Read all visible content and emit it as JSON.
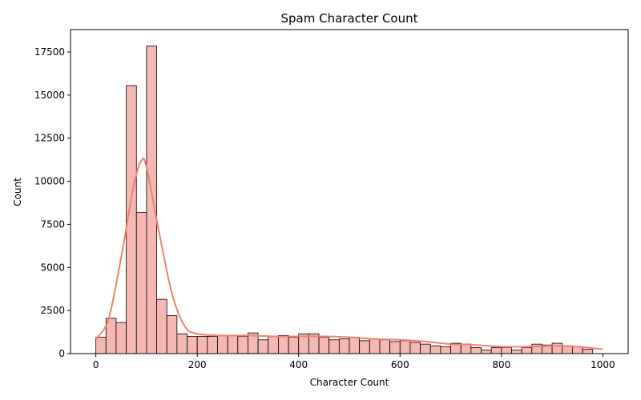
{
  "chart_data": {
    "type": "bar",
    "subtype": "histogram-with-kde",
    "title": "Spam Character Count",
    "xlabel": "Character Count",
    "ylabel": "Count",
    "xlim": [
      -50,
      1050
    ],
    "ylim": [
      0,
      18800
    ],
    "xticks": [
      0,
      200,
      400,
      600,
      800,
      1000
    ],
    "yticks": [
      0,
      2500,
      5000,
      7500,
      10000,
      12500,
      15000,
      17500
    ],
    "grid": false,
    "legend": "none",
    "bin_width": 20,
    "bin_start": 0,
    "bar_color": "#f5b8b2",
    "bar_edge_color": "#000000",
    "kde_color": "#f08070",
    "counts": [
      950,
      2050,
      1800,
      15550,
      8200,
      17850,
      3150,
      2200,
      1150,
      1000,
      1000,
      1000,
      1050,
      1050,
      1000,
      1200,
      800,
      1000,
      1050,
      950,
      1150,
      1150,
      950,
      800,
      850,
      950,
      750,
      850,
      800,
      700,
      750,
      650,
      550,
      450,
      400,
      600,
      550,
      350,
      200,
      350,
      350,
      200,
      350,
      550,
      500,
      600,
      450,
      400,
      250
    ],
    "kde": {
      "x": [
        0,
        25,
        50,
        75,
        90,
        100,
        125,
        150,
        175,
        200,
        250,
        300,
        350,
        400,
        450,
        500,
        550,
        600,
        650,
        700,
        750,
        800,
        850,
        900,
        950,
        1000
      ],
      "y": [
        850,
        2000,
        5600,
        9800,
        11200,
        10800,
        7000,
        3500,
        1600,
        1150,
        1050,
        1050,
        1000,
        1000,
        1000,
        950,
        850,
        800,
        700,
        550,
        500,
        400,
        400,
        450,
        400,
        250
      ]
    }
  }
}
